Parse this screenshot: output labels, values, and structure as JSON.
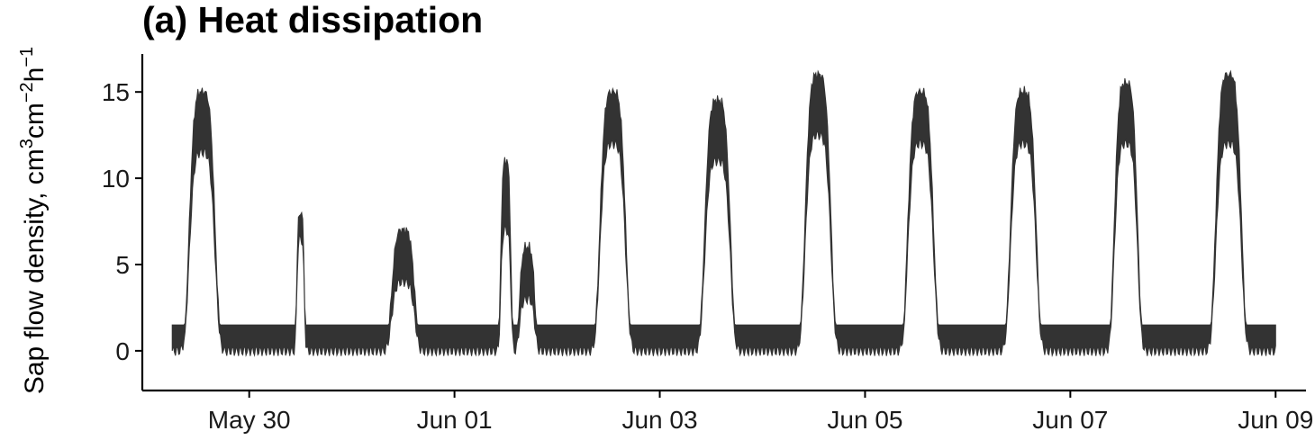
{
  "chart_data": {
    "type": "area",
    "title": "(a) Heat dissipation",
    "ylabel": {
      "text": "Sap flow density, cm",
      "sup1": "3",
      "mid1": "cm",
      "sup2": "−2",
      "mid2": "h",
      "sup3": "−1"
    },
    "xlabel": "",
    "x_ticks": [
      {
        "date": "2021-05-30",
        "label": "May 30"
      },
      {
        "date": "2021-06-01",
        "label": "Jun 01"
      },
      {
        "date": "2021-06-03",
        "label": "Jun 03"
      },
      {
        "date": "2021-06-05",
        "label": "Jun 05"
      },
      {
        "date": "2021-06-07",
        "label": "Jun 07"
      },
      {
        "date": "2021-06-09",
        "label": "Jun 09"
      }
    ],
    "y_ticks": [
      0,
      5,
      10,
      15
    ],
    "xlim": [
      "2021-05-28T23:00",
      "2021-06-09T05:00"
    ],
    "ylim": [
      -2.3,
      17.2
    ],
    "grid": false,
    "fill_color": "#333333",
    "band_series": {
      "name": "",
      "x_start": "2021-05-29T06:00",
      "x_end": "2021-06-09T00:00",
      "night_band": [
        -1.5,
        1.5
      ],
      "days": [
        {
          "date": "2021-05-29",
          "peak_time": "2021-05-29T13:00",
          "upper": 15.0,
          "lower": 11.5,
          "halfwidth_h": 5.0
        },
        {
          "date": "2021-05-30",
          "peak_time": "2021-05-30T12:00",
          "upper": 8.0,
          "lower": 6.5,
          "halfwidth_h": 1.5
        },
        {
          "date": "2021-05-31",
          "peak_time": "2021-05-31T12:00",
          "upper": 7.0,
          "lower": 4.0,
          "halfwidth_h": 4.5
        },
        {
          "date": "2021-06-01",
          "peak_time": "2021-06-01T12:00",
          "upper": 11.0,
          "lower": 7.0,
          "halfwidth_h": 2.0
        },
        {
          "date": "2021-06-01",
          "peak_time": "2021-06-01T17:00",
          "upper": 6.0,
          "lower": 3.0,
          "halfwidth_h": 3.0
        },
        {
          "date": "2021-06-02",
          "peak_time": "2021-06-02T13:00",
          "upper": 15.0,
          "lower": 12.0,
          "halfwidth_h": 5.0
        },
        {
          "date": "2021-06-03",
          "peak_time": "2021-06-03T13:30",
          "upper": 14.5,
          "lower": 11.0,
          "halfwidth_h": 5.0
        },
        {
          "date": "2021-06-04",
          "peak_time": "2021-06-04T13:00",
          "upper": 16.0,
          "lower": 12.5,
          "halfwidth_h": 5.0
        },
        {
          "date": "2021-06-05",
          "peak_time": "2021-06-05T13:00",
          "upper": 15.0,
          "lower": 12.0,
          "halfwidth_h": 5.0
        },
        {
          "date": "2021-06-06",
          "peak_time": "2021-06-06T13:00",
          "upper": 15.0,
          "lower": 12.0,
          "halfwidth_h": 5.0
        },
        {
          "date": "2021-06-07",
          "peak_time": "2021-06-07T13:00",
          "upper": 15.5,
          "lower": 12.0,
          "halfwidth_h": 4.5
        },
        {
          "date": "2021-06-08",
          "peak_time": "2021-06-08T13:00",
          "upper": 16.0,
          "lower": 12.0,
          "halfwidth_h": 5.0
        }
      ]
    }
  }
}
